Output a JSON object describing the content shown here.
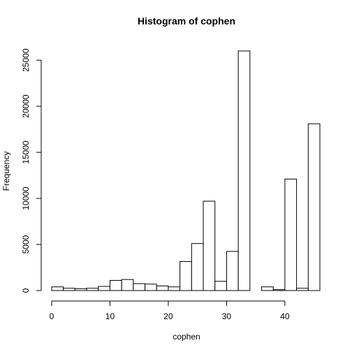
{
  "chart_data": {
    "type": "bar",
    "title": "Histogram of cophen",
    "xlabel": "cophen",
    "ylabel": "Frequency",
    "bin_edges": [
      0,
      2,
      4,
      6,
      8,
      10,
      12,
      14,
      16,
      18,
      20,
      22,
      24,
      26,
      28,
      30,
      32,
      34,
      36,
      38,
      40,
      42,
      44,
      46
    ],
    "values": [
      400,
      250,
      200,
      250,
      450,
      1100,
      1200,
      750,
      700,
      500,
      400,
      3150,
      5100,
      9700,
      1000,
      4250,
      26000,
      0,
      400,
      100,
      12100,
      250,
      18100
    ],
    "x_ticks": [
      0,
      10,
      20,
      30,
      40
    ],
    "y_ticks": [
      0,
      5000,
      10000,
      15000,
      20000,
      25000
    ],
    "xlim": [
      0,
      46
    ],
    "ylim": [
      0,
      26000
    ],
    "grid": false,
    "colors": {
      "bar_fill": "#ffffff",
      "bar_stroke": "#000000"
    }
  }
}
